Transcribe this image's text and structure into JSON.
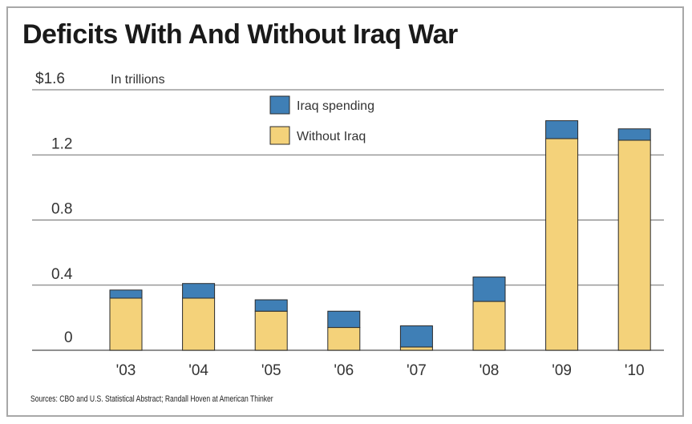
{
  "chart_data": {
    "type": "bar",
    "stacked": true,
    "title": "Deficits With And Without Iraq War",
    "unit_label": "In trillions",
    "source": "Sources: CBO and U.S. Statistical Abstract; Randall Hoven at American Thinker",
    "categories": [
      "'03",
      "'04",
      "'05",
      "'06",
      "'07",
      "'08",
      "'09",
      "'10"
    ],
    "series": [
      {
        "name": "Without Iraq",
        "color": "#f4d27a",
        "values": [
          0.32,
          0.32,
          0.24,
          0.14,
          0.02,
          0.3,
          1.3,
          1.29
        ]
      },
      {
        "name": "Iraq spending",
        "color": "#3f7fb6",
        "values": [
          0.05,
          0.09,
          0.07,
          0.1,
          0.13,
          0.15,
          0.11,
          0.07
        ]
      }
    ],
    "y_ticks": [
      "0",
      "0.4",
      "0.8",
      "1.2",
      "$1.6"
    ],
    "y_tick_values": [
      0,
      0.4,
      0.8,
      1.2,
      1.6
    ],
    "ylim": [
      0,
      1.6
    ],
    "grid": true,
    "legend_position": "top-center"
  }
}
